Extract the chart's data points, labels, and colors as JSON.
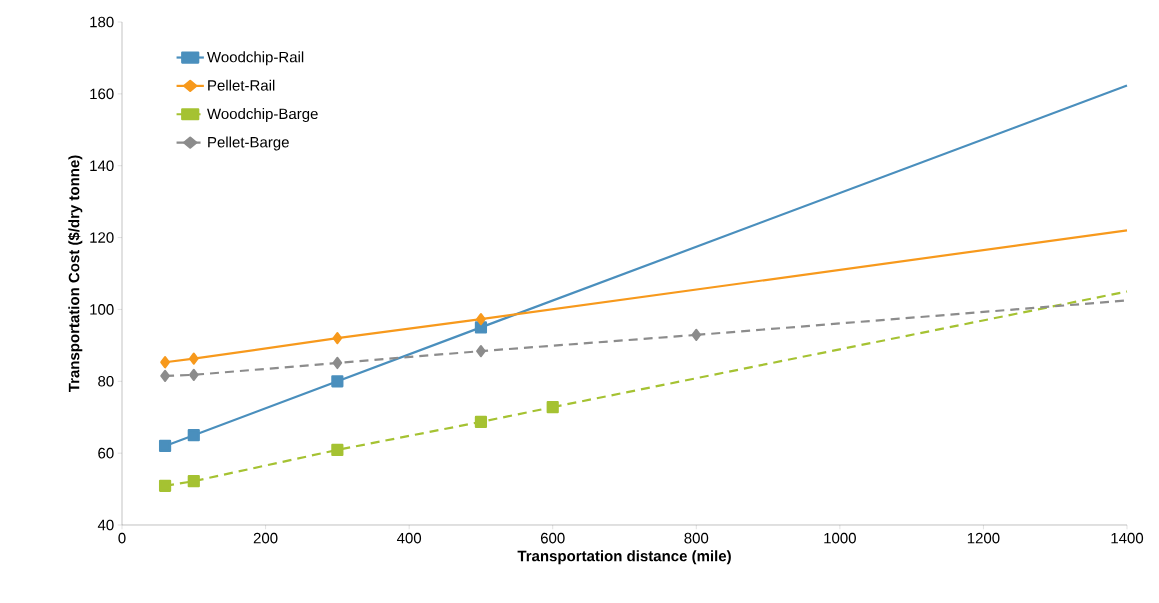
{
  "chart_data": {
    "type": "line",
    "xlabel": "Transportation distance (mile)",
    "ylabel": "Transportation Cost ($/dry tonne)",
    "xlim": [
      0,
      1400
    ],
    "xticks": [
      0,
      200,
      400,
      600,
      800,
      1000,
      1200,
      1400
    ],
    "ylim": [
      40,
      180
    ],
    "yticks": [
      40,
      60,
      80,
      100,
      120,
      140,
      160,
      180
    ],
    "grid": false,
    "legend": "top left",
    "series": [
      {
        "name": "Woodchip-Rail",
        "color": "#4a8fbd",
        "marker": "square",
        "line_style": "solid",
        "x": [
          60,
          100,
          300,
          500
        ],
        "values": [
          62,
          65,
          80,
          95
        ]
      },
      {
        "name": "Pellet-Rail",
        "color": "#f7991c",
        "marker": "diamond",
        "line_style": "solid",
        "x": [
          60,
          100,
          300,
          500
        ],
        "values": [
          85.3,
          86.3,
          92,
          97.3
        ]
      },
      {
        "name": "Woodchip-Barge",
        "color": "#a5c232",
        "marker": "square",
        "line_style": "dashed",
        "x": [
          60,
          100,
          300,
          500,
          600
        ],
        "values": [
          50.9,
          52.2,
          60.9,
          68.7,
          72.8
        ]
      },
      {
        "name": "Pellet-Barge",
        "color": "#8c8c8c",
        "marker": "diamond",
        "line_style": "dashed",
        "x": [
          60,
          100,
          300,
          500,
          800
        ],
        "values": [
          81.5,
          81.8,
          85.1,
          88.4,
          92.9
        ]
      },
      {
        "type": "line",
        "color": "#4a8fbd",
        "marker": "none",
        "line_style": "solid",
        "x": [
          500,
          1400
        ],
        "values": [
          95,
          162.3
        ]
      },
      {
        "type": "line",
        "color": "#f7991c",
        "marker": "none",
        "line_style": "solid",
        "x": [
          500,
          1400
        ],
        "values": [
          97.3,
          122
        ]
      },
      {
        "type": "line",
        "color": "#a5c232",
        "marker": "none",
        "line_style": "dashed",
        "x": [
          600,
          1400
        ],
        "values": [
          72.8,
          105
        ]
      },
      {
        "type": "line",
        "color": "#8c8c8c",
        "marker": "none",
        "line_style": "dashed",
        "x": [
          800,
          1400
        ],
        "values": [
          92.9,
          102.5
        ]
      }
    ]
  }
}
